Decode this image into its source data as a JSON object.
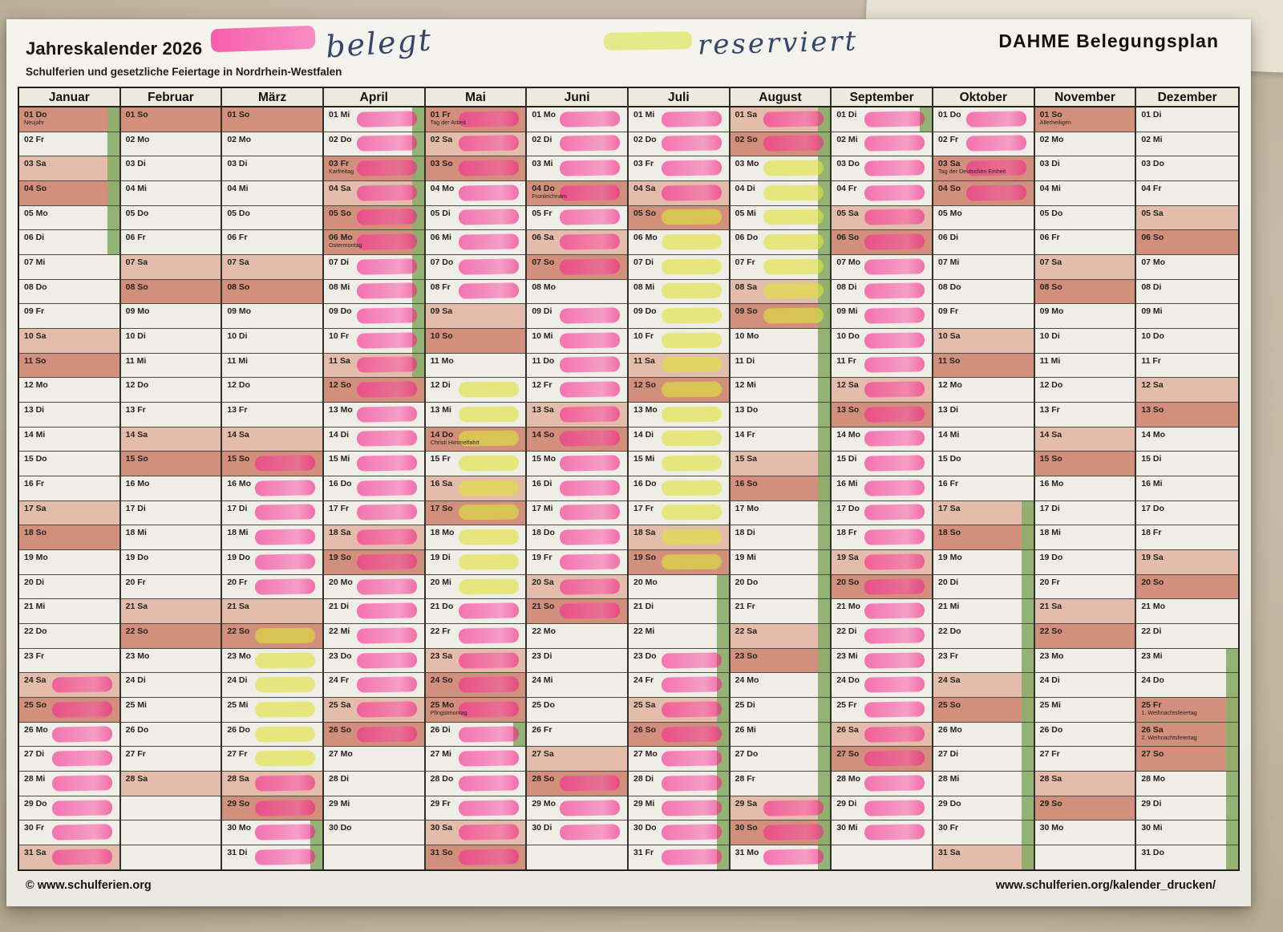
{
  "header": {
    "title": "Jahreskalender 2026",
    "subtitle": "Schulferien und gesetzliche Feiertage in Nordrhein-Westfalen",
    "plan_title": "DAHME Belegungsplan",
    "legend": {
      "belegt_label": "belegt",
      "reserviert_label": "reserviert"
    }
  },
  "footer": {
    "copyright": "© www.schulferien.org",
    "print_url": "www.schulferien.org/kalender_drucken/"
  },
  "colors": {
    "marker_belegt_pink": "#f42c8e",
    "marker_reserviert_yellow": "#dfe43e",
    "saturday_row": "#e4bcab",
    "sunday_holiday_row": "#d28f7c",
    "school_holiday_green": "#8cae6b",
    "paper": "#f2f1ea",
    "grid_line": "#30302a"
  },
  "calendar": {
    "year": "2026",
    "weekday_cycle": [
      "Mo",
      "Di",
      "Mi",
      "Do",
      "Fr",
      "Sa",
      "So"
    ],
    "rows": 31,
    "months": [
      {
        "name": "Januar",
        "days": 31,
        "start": "Do",
        "holidays": {
          "1": "Neujahr"
        },
        "belegt": [
          24,
          25,
          26,
          27,
          28,
          29,
          30,
          31
        ],
        "reserviert": [],
        "ferien": [
          1,
          2,
          3,
          4,
          5,
          6
        ]
      },
      {
        "name": "Februar",
        "days": 28,
        "start": "So",
        "holidays": {},
        "belegt": [],
        "reserviert": [],
        "ferien": []
      },
      {
        "name": "März",
        "days": 31,
        "start": "So",
        "holidays": {},
        "belegt": [
          15,
          16,
          17,
          18,
          19,
          20,
          28,
          29,
          30,
          31
        ],
        "reserviert": [
          22,
          23,
          24,
          25,
          26,
          27
        ],
        "ferien": [
          30,
          31
        ]
      },
      {
        "name": "April",
        "days": 30,
        "start": "Mi",
        "holidays": {
          "3": "Karfreitag",
          "6": "Ostermontag"
        },
        "belegt": [
          1,
          2,
          3,
          4,
          5,
          6,
          7,
          8,
          9,
          10,
          11,
          12,
          13,
          14,
          15,
          16,
          17,
          18,
          19,
          20,
          21,
          22,
          23,
          24,
          25,
          26
        ],
        "reserviert": [],
        "ferien": [
          1,
          2,
          3,
          4,
          5,
          6,
          7,
          8,
          9,
          10,
          11
        ]
      },
      {
        "name": "Mai",
        "days": 31,
        "start": "Fr",
        "holidays": {
          "1": "Tag der Arbeit",
          "14": "Christi Himmelfahrt",
          "25": "Pfingstmontag"
        },
        "belegt": [
          1,
          2,
          3,
          4,
          5,
          6,
          7,
          8,
          21,
          22,
          23,
          24,
          25,
          26,
          27,
          28,
          29,
          30,
          31
        ],
        "reserviert": [
          12,
          13,
          14,
          15,
          16,
          17,
          18,
          19,
          20
        ],
        "ferien": [
          26
        ]
      },
      {
        "name": "Juni",
        "days": 30,
        "start": "Mo",
        "holidays": {
          "4": "Fronleichnam"
        },
        "belegt": [
          1,
          2,
          3,
          4,
          5,
          6,
          7,
          9,
          10,
          11,
          12,
          13,
          14,
          15,
          16,
          17,
          18,
          19,
          20,
          21,
          28,
          29,
          30
        ],
        "reserviert": [],
        "ferien": []
      },
      {
        "name": "Juli",
        "days": 31,
        "start": "Mi",
        "holidays": {},
        "belegt": [
          1,
          2,
          3,
          4,
          23,
          24,
          25,
          26,
          27,
          28,
          29,
          30,
          31
        ],
        "reserviert": [
          5,
          6,
          7,
          8,
          9,
          10,
          11,
          12,
          13,
          14,
          15,
          16,
          17,
          18,
          19
        ],
        "ferien": [
          20,
          21,
          22,
          23,
          24,
          25,
          26,
          27,
          28,
          29,
          30,
          31
        ]
      },
      {
        "name": "August",
        "days": 31,
        "start": "Sa",
        "holidays": {},
        "belegt": [
          1,
          2,
          29,
          30,
          31
        ],
        "reserviert": [
          3,
          4,
          5,
          6,
          7,
          8,
          9
        ],
        "ferien": [
          1,
          2,
          3,
          4,
          5,
          6,
          7,
          8,
          9,
          10,
          11,
          12,
          13,
          14,
          15,
          16,
          17,
          18,
          19,
          20,
          21,
          22,
          23,
          24,
          25,
          26,
          27,
          28,
          29,
          30,
          31
        ]
      },
      {
        "name": "September",
        "days": 30,
        "start": "Di",
        "holidays": {},
        "belegt": [
          1,
          2,
          3,
          4,
          5,
          6,
          7,
          8,
          9,
          10,
          11,
          12,
          13,
          14,
          15,
          16,
          17,
          18,
          19,
          20,
          21,
          22,
          23,
          24,
          25,
          26,
          27,
          28,
          29,
          30
        ],
        "reserviert": [],
        "ferien": [
          1
        ]
      },
      {
        "name": "Oktober",
        "days": 31,
        "start": "Do",
        "holidays": {
          "3": "Tag der Deutschen Einheit"
        },
        "belegt": [
          1,
          2,
          3,
          4
        ],
        "reserviert": [],
        "ferien": [
          17,
          18,
          19,
          20,
          21,
          22,
          23,
          24,
          25,
          26,
          27,
          28,
          29,
          30,
          31
        ]
      },
      {
        "name": "November",
        "days": 30,
        "start": "So",
        "holidays": {
          "1": "Allerheiligen"
        },
        "belegt": [],
        "reserviert": [],
        "ferien": []
      },
      {
        "name": "Dezember",
        "days": 31,
        "start": "Di",
        "holidays": {
          "25": "1. Weihnachtsfeiertag",
          "26": "2. Weihnachtsfeiertag"
        },
        "belegt": [],
        "reserviert": [],
        "ferien": [
          23,
          24,
          25,
          26,
          27,
          28,
          29,
          30,
          31
        ]
      }
    ]
  }
}
